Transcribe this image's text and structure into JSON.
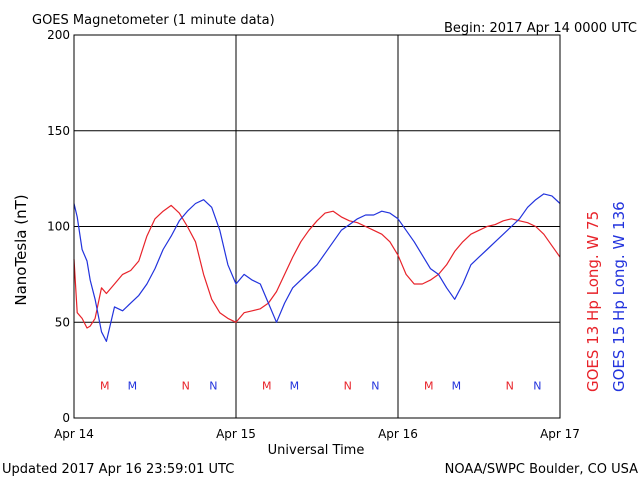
{
  "header": {
    "title": "GOES Magnetometer (1 minute data)",
    "begin": "Begin:  2017 Apr 14 0000 UTC"
  },
  "footer": {
    "updated": "Updated 2017 Apr 16 23:59:01 UTC",
    "credit": "NOAA/SWPC Boulder, CO USA"
  },
  "colors": {
    "goes13": "#e8232a",
    "goes15": "#2233dd",
    "frame": "#000000"
  },
  "chart_data": {
    "type": "line",
    "ylabel": "NanoTesla (nT)",
    "xlabel": "Universal Time",
    "ylim": [
      0,
      200
    ],
    "yticks": [
      0,
      50,
      100,
      150,
      200
    ],
    "xlim": [
      0,
      3
    ],
    "xticks": [
      {
        "value": 0,
        "label": "Apr 14"
      },
      {
        "value": 1,
        "label": "Apr 15"
      },
      {
        "value": 2,
        "label": "Apr 16"
      },
      {
        "value": 3,
        "label": "Apr 17"
      }
    ],
    "x_unit": "days since 2017 Apr 14 0000 UTC",
    "grid": true,
    "series": [
      {
        "name": "GOES 13 Hp  Long. W 75",
        "color": "#e8232a",
        "x": [
          0.0,
          0.02,
          0.05,
          0.08,
          0.1,
          0.13,
          0.17,
          0.2,
          0.25,
          0.3,
          0.35,
          0.4,
          0.45,
          0.5,
          0.55,
          0.6,
          0.65,
          0.7,
          0.75,
          0.8,
          0.85,
          0.9,
          0.95,
          1.0,
          1.05,
          1.1,
          1.15,
          1.2,
          1.25,
          1.3,
          1.35,
          1.4,
          1.45,
          1.5,
          1.55,
          1.6,
          1.65,
          1.7,
          1.75,
          1.8,
          1.85,
          1.9,
          1.95,
          2.0,
          2.05,
          2.1,
          2.15,
          2.2,
          2.25,
          2.3,
          2.35,
          2.4,
          2.45,
          2.5,
          2.55,
          2.6,
          2.65,
          2.7,
          2.75,
          2.8,
          2.85,
          2.9,
          2.95,
          3.0
        ],
        "values": [
          83,
          55,
          52,
          47,
          48,
          52,
          68,
          65,
          70,
          75,
          77,
          82,
          95,
          104,
          108,
          111,
          107,
          100,
          92,
          75,
          62,
          55,
          52,
          50,
          55,
          56,
          57,
          60,
          66,
          75,
          84,
          92,
          98,
          103,
          107,
          108,
          105,
          103,
          102,
          100,
          98,
          96,
          92,
          85,
          75,
          70,
          70,
          72,
          75,
          80,
          87,
          92,
          96,
          98,
          100,
          101,
          103,
          104,
          103,
          102,
          100,
          96,
          90,
          84
        ]
      },
      {
        "name": "GOES 15 Hp  Long. W 136",
        "color": "#2233dd",
        "x": [
          0.0,
          0.02,
          0.05,
          0.08,
          0.1,
          0.13,
          0.17,
          0.2,
          0.25,
          0.3,
          0.35,
          0.4,
          0.45,
          0.5,
          0.55,
          0.6,
          0.65,
          0.7,
          0.75,
          0.8,
          0.85,
          0.9,
          0.95,
          1.0,
          1.05,
          1.1,
          1.15,
          1.2,
          1.25,
          1.3,
          1.35,
          1.4,
          1.45,
          1.5,
          1.55,
          1.6,
          1.65,
          1.7,
          1.75,
          1.8,
          1.85,
          1.9,
          1.95,
          2.0,
          2.05,
          2.1,
          2.15,
          2.2,
          2.25,
          2.3,
          2.35,
          2.4,
          2.45,
          2.5,
          2.55,
          2.6,
          2.65,
          2.7,
          2.75,
          2.8,
          2.85,
          2.9,
          2.95,
          3.0
        ],
        "values": [
          112,
          105,
          88,
          82,
          72,
          62,
          45,
          40,
          58,
          56,
          60,
          64,
          70,
          78,
          88,
          95,
          103,
          108,
          112,
          114,
          110,
          98,
          80,
          70,
          75,
          72,
          70,
          60,
          50,
          60,
          68,
          72,
          76,
          80,
          86,
          92,
          98,
          101,
          104,
          106,
          106,
          108,
          107,
          104,
          98,
          92,
          85,
          78,
          75,
          68,
          62,
          70,
          80,
          84,
          88,
          92,
          96,
          100,
          104,
          110,
          114,
          117,
          116,
          112
        ]
      }
    ],
    "side_labels": [
      {
        "text": "GOES 13 Hp  Long. W 75",
        "color": "#e8232a"
      },
      {
        "text": "GOES 15 Hp  Long. W 136",
        "color": "#2233dd"
      }
    ],
    "annotations": [
      {
        "text": "M",
        "x": 0.19,
        "color": "#e8232a"
      },
      {
        "text": "M",
        "x": 0.36,
        "color": "#2233dd"
      },
      {
        "text": "N",
        "x": 0.69,
        "color": "#e8232a"
      },
      {
        "text": "N",
        "x": 0.86,
        "color": "#2233dd"
      },
      {
        "text": "M",
        "x": 1.19,
        "color": "#e8232a"
      },
      {
        "text": "M",
        "x": 1.36,
        "color": "#2233dd"
      },
      {
        "text": "N",
        "x": 1.69,
        "color": "#e8232a"
      },
      {
        "text": "N",
        "x": 1.86,
        "color": "#2233dd"
      },
      {
        "text": "M",
        "x": 2.19,
        "color": "#e8232a"
      },
      {
        "text": "M",
        "x": 2.36,
        "color": "#2233dd"
      },
      {
        "text": "N",
        "x": 2.69,
        "color": "#e8232a"
      },
      {
        "text": "N",
        "x": 2.86,
        "color": "#2233dd"
      }
    ],
    "annotation_level": 17
  }
}
